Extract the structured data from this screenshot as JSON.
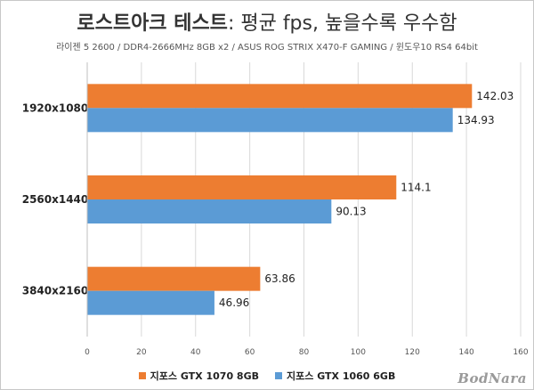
{
  "chart_data": {
    "type": "bar",
    "orientation": "horizontal",
    "title_bold": "로스트아크 테스트",
    "title_rest": ": 평균 fps, 높을수록 우수함",
    "subtitle": "라이젠 5 2600 / DDR4-2666MHz 8GB x2 / ASUS ROG STRIX X470-F GAMING / 윈도우10 RS4 64bit",
    "categories": [
      "1920x1080",
      "2560x1440",
      "3840x2160"
    ],
    "series": [
      {
        "name": "지포스 GTX 1070 8GB",
        "color": "#ED7D31",
        "values": [
          142.03,
          114.1,
          63.86
        ],
        "labels": [
          "142.03",
          "114.1",
          "63.86"
        ]
      },
      {
        "name": "지포스 GTX 1060 6GB",
        "color": "#5B9BD5",
        "values": [
          134.93,
          90.13,
          46.96
        ],
        "labels": [
          "134.93",
          "90.13",
          "46.96"
        ]
      }
    ],
    "xlim": [
      0,
      160
    ],
    "xticks": [
      0,
      20,
      40,
      60,
      80,
      100,
      120,
      140,
      160
    ],
    "grid": true,
    "legend_position": "bottom"
  },
  "watermark": "BodNara"
}
